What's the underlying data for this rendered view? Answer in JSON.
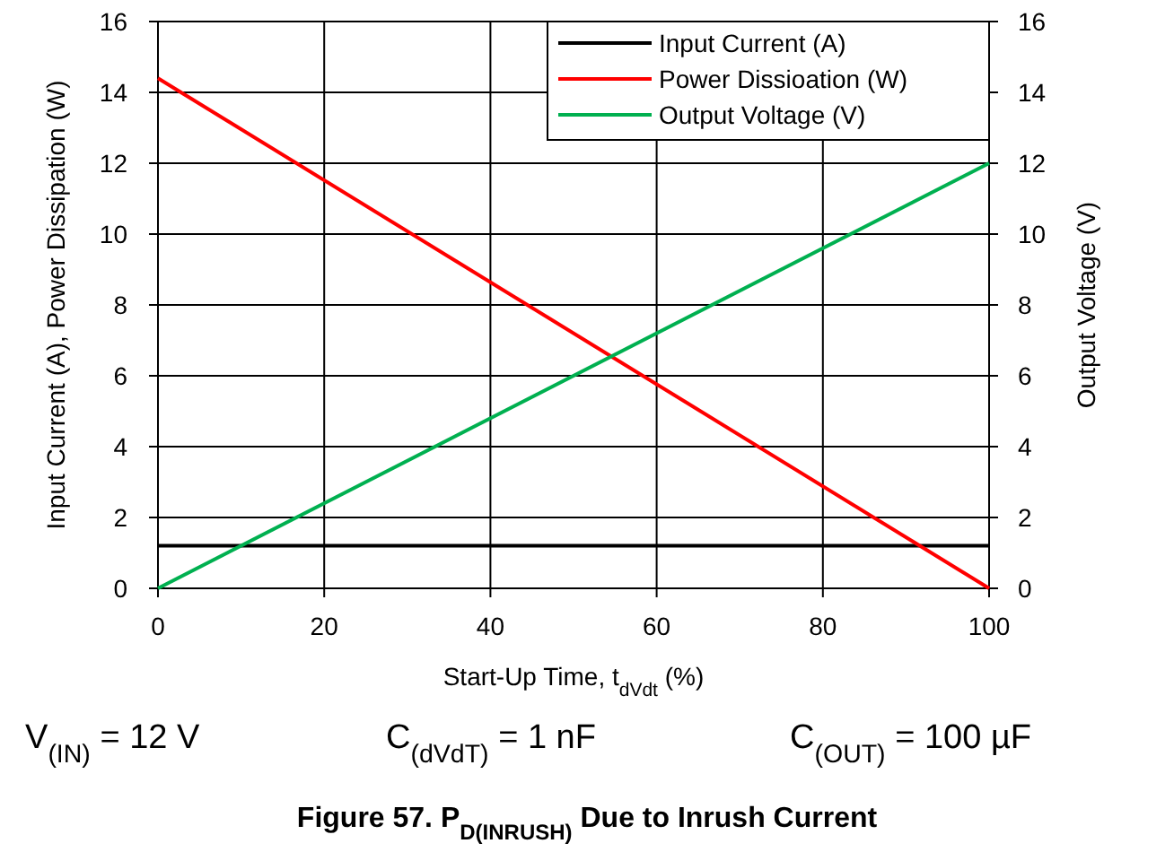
{
  "chart_data": {
    "type": "line",
    "title": "Figure 57. P$_{D(INRUSH)}$ Due to Inrush Current",
    "xlabel": "Start-Up Time, t$_{dVdt}$ (%)",
    "ylabel": "Input  Current (A), Power Dissipation (W)",
    "y2label": "Output Voltage  (V)",
    "x": [
      0,
      100
    ],
    "series": [
      {
        "name": "Input Current (A)",
        "color": "#000000",
        "values": [
          1.2,
          1.2
        ]
      },
      {
        "name": "Power Dissioation (W)",
        "color": "#ff0000",
        "values": [
          14.4,
          0
        ]
      },
      {
        "name": "Output Voltage (V)",
        "color": "#00b050",
        "values": [
          0,
          12
        ],
        "axis": "y2"
      }
    ],
    "xlim": [
      0,
      100
    ],
    "xticks": [
      0,
      20,
      40,
      60,
      80,
      100
    ],
    "ylim": [
      0,
      16
    ],
    "yticks": [
      0,
      2,
      4,
      6,
      8,
      10,
      12,
      14,
      16
    ],
    "y2lim": [
      0,
      16
    ],
    "y2ticks": [
      0,
      2,
      4,
      6,
      8,
      10,
      12,
      14,
      16
    ],
    "grid": true,
    "legend": "top right",
    "marker": "none",
    "line_style": "solid",
    "annotations": [
      "V$_{(IN)}$ = 12 V",
      "C$_{(dVdT)}$ = 1 nF",
      "C$_{(OUT)}$ = 100 µF"
    ]
  }
}
